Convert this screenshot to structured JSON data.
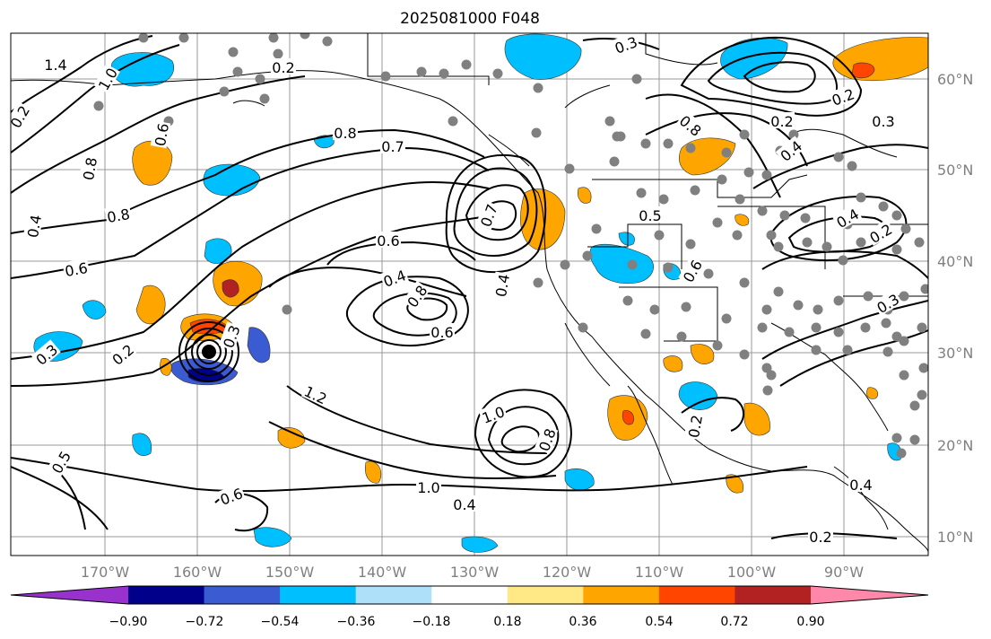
{
  "title": "2025081000 F048",
  "map": {
    "lat_labels": [
      "60°N",
      "50°N",
      "40°N",
      "30°N",
      "20°N",
      "10°N"
    ],
    "lon_labels": [
      "170°W",
      "160°W",
      "150°W",
      "140°W",
      "130°W",
      "120°W",
      "110°W",
      "100°W",
      "90°W"
    ]
  },
  "colorbar": {
    "ticks": [
      "−0.90",
      "−0.72",
      "−0.54",
      "−0.36",
      "−0.18",
      "0.18",
      "0.36",
      "0.54",
      "0.72",
      "0.90"
    ],
    "colors": [
      "#9932cc",
      "#00008b",
      "#3a5bd1",
      "#00bfff",
      "#afe0fa",
      "#ffffff",
      "#ffe885",
      "#ffa500",
      "#ff4500",
      "#b22222",
      "#ff88aa"
    ]
  },
  "contour_labels": [
    "0.2",
    "1.4",
    "1.0",
    "0.8",
    "0.6",
    "0.4",
    "0.8",
    "0.6",
    "0.8",
    "0.7",
    "0.6",
    "0.4",
    "0.8",
    "0.6",
    "0.4",
    "0.7",
    "1.2",
    "1.0",
    "0.8",
    "1.0",
    "0.4",
    "0.5",
    "0.6",
    "0.3",
    "0.2",
    "0.2",
    "0.2",
    "0.2",
    "0.3",
    "0.4",
    "0.8",
    "0.6",
    "0.5",
    "0.4",
    "0.2",
    "0.3",
    "0.2",
    "0.2",
    "0.4",
    "0.3",
    "0.3"
  ]
}
